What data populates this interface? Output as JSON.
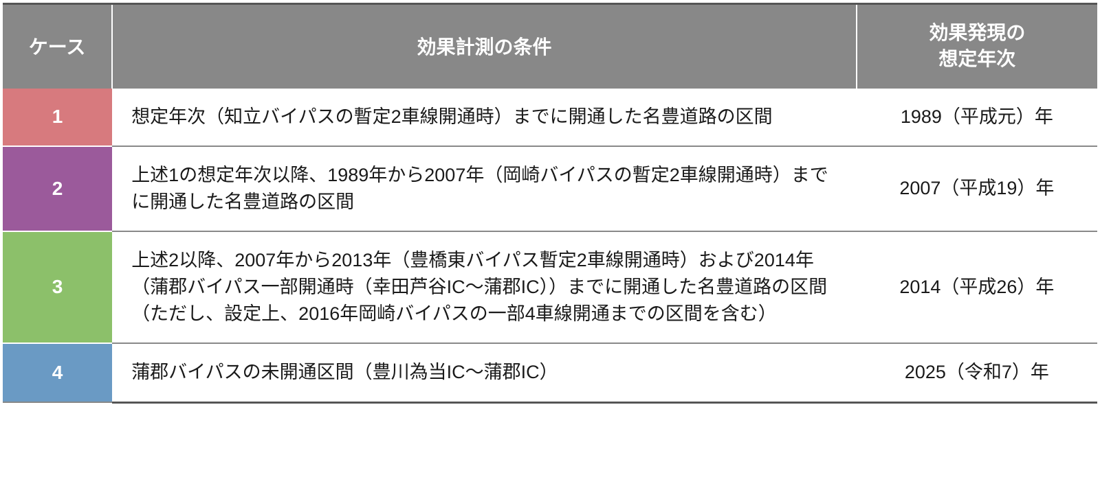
{
  "table": {
    "header": {
      "case": "ケース",
      "condition": "効果計測の条件",
      "year_line1": "効果発現の",
      "year_line2": "想定年次"
    },
    "header_bg": "#888888",
    "header_fg": "#ffffff",
    "border_color": "#888888",
    "rows": [
      {
        "case": "1",
        "case_color": "#d77a7e",
        "condition": "想定年次（知立バイパスの暫定2車線開通時）までに開通した名豊道路の区間",
        "year": "1989（平成元）年"
      },
      {
        "case": "2",
        "case_color": "#9b5a9b",
        "condition": "上述1の想定年次以降、1989年から2007年（岡崎バイパスの暫定2車線開通時）までに開通した名豊道路の区間",
        "year": "2007（平成19）年"
      },
      {
        "case": "3",
        "case_color": "#8cc06a",
        "condition": "上述2以降、2007年から2013年（豊橋東バイパス暫定2車線開通時）および2014年（蒲郡バイパス一部開通時（幸田芦谷IC～蒲郡IC））までに開通した名豊道路の区間　（ただし、設定上、2016年岡崎バイパスの一部4車線開通までの区間を含む）",
        "year": "2014（平成26）年"
      },
      {
        "case": "4",
        "case_color": "#6a9ac4",
        "condition": "蒲郡バイパスの未開通区間（豊川為当IC～蒲郡IC）",
        "year": "2025（令和7）年"
      }
    ]
  }
}
